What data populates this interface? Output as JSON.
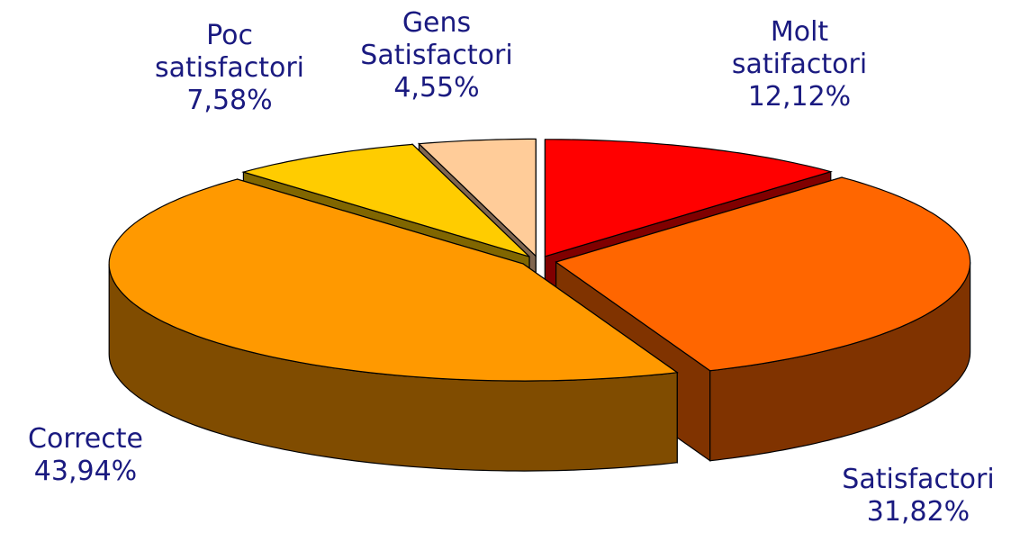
{
  "chart_data": {
    "type": "pie3d",
    "categories": [
      "Molt satifactori",
      "Satisfactori",
      "Correcte",
      "Poc satisfactori",
      "Gens Satisfactori"
    ],
    "values": [
      12.12,
      31.82,
      43.94,
      7.58,
      4.55
    ],
    "value_labels": [
      "12,12%",
      "31,82%",
      "43,94%",
      "7,58%",
      "4,55%"
    ],
    "colors": [
      "#ff0000",
      "#ff6600",
      "#ff9900",
      "#ffcc00",
      "#ffcc99"
    ],
    "side_colors": [
      "#800000",
      "#803300",
      "#804c00",
      "#806600",
      "#806650"
    ]
  }
}
